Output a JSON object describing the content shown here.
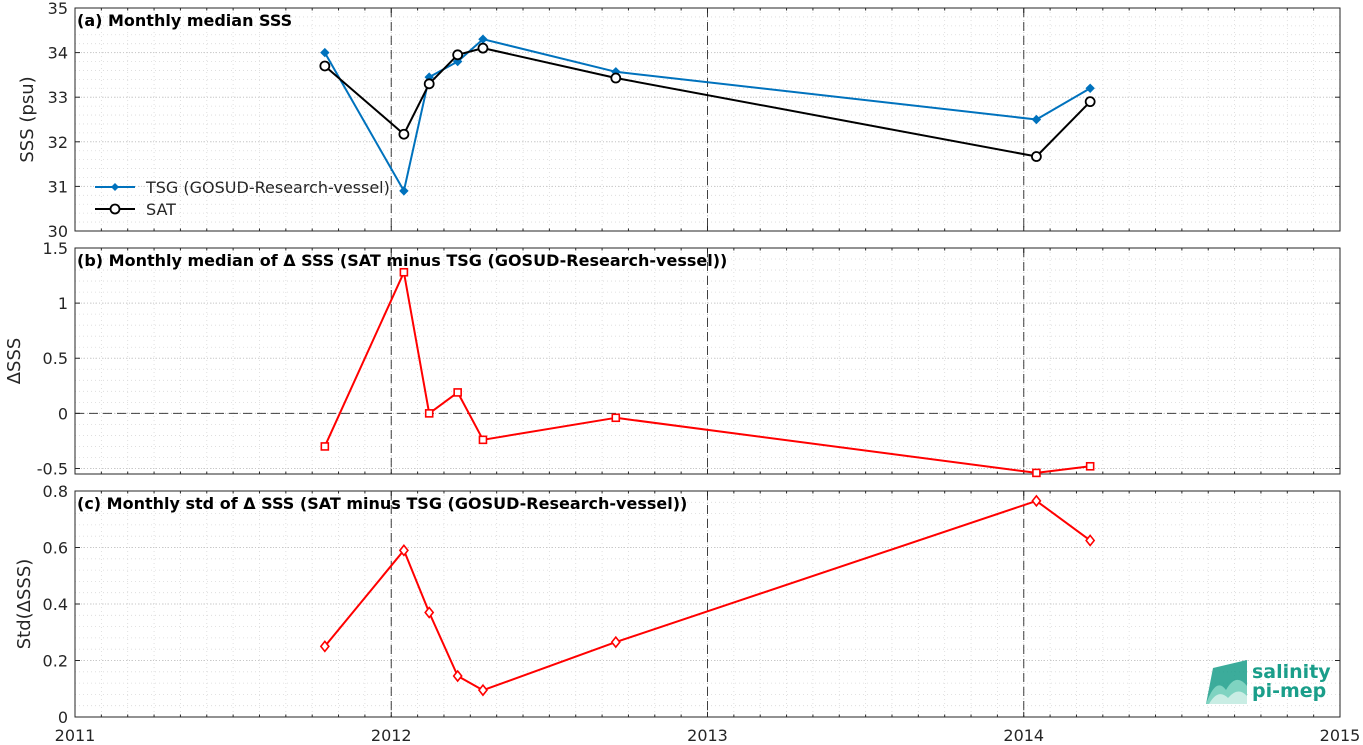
{
  "logo": {
    "line1": "salinity",
    "line2": "pi-mep"
  },
  "colors": {
    "tsg": "#0072bd",
    "sat": "#000000",
    "delta": "#ff0000",
    "logo": "#1a9e8a"
  },
  "chart_data": [
    {
      "type": "line",
      "title": "(a) Monthly median SSS",
      "ylabel": "SSS (psu)",
      "xlim": [
        2011,
        2015
      ],
      "ylim": [
        30,
        35
      ],
      "yticks": [
        30,
        31,
        32,
        33,
        34,
        35
      ],
      "ytick_labels": [
        "30",
        "31",
        "32",
        "33",
        "34",
        "35"
      ],
      "grid": true,
      "legend": "lower-left",
      "series": [
        {
          "name": "TSG (GOSUD-Research-vessel)",
          "color": "#0072bd",
          "marker": "filled-diamond",
          "x": [
            2011.79,
            2012.04,
            2012.12,
            2012.21,
            2012.29,
            2012.71,
            2014.04,
            2014.21
          ],
          "y": [
            34.0,
            30.9,
            33.45,
            33.8,
            34.3,
            33.57,
            32.5,
            33.2
          ]
        },
        {
          "name": "SAT",
          "color": "#000000",
          "marker": "open-circle",
          "x": [
            2011.79,
            2012.04,
            2012.12,
            2012.21,
            2012.29,
            2012.71,
            2014.04,
            2014.21
          ],
          "y": [
            33.7,
            32.17,
            33.3,
            33.95,
            34.1,
            33.43,
            31.67,
            32.9
          ]
        }
      ]
    },
    {
      "type": "line",
      "title": "(b) Monthly median of Δ SSS (SAT minus TSG (GOSUD-Research-vessel))",
      "ylabel": "ΔSSS",
      "xlim": [
        2011,
        2015
      ],
      "ylim": [
        -0.55,
        1.5
      ],
      "yticks": [
        -0.5,
        0,
        0.5,
        1,
        1.5
      ],
      "ytick_labels": [
        "-0.5",
        "0",
        "0.5",
        "1",
        "1.5"
      ],
      "grid": true,
      "zero_line": true,
      "series": [
        {
          "color": "#ff0000",
          "marker": "open-square",
          "x": [
            2011.79,
            2012.04,
            2012.12,
            2012.21,
            2012.29,
            2012.71,
            2014.04,
            2014.21
          ],
          "y": [
            -0.3,
            1.28,
            0.0,
            0.19,
            -0.24,
            -0.04,
            -0.54,
            -0.48
          ]
        }
      ]
    },
    {
      "type": "line",
      "title": "(c) Monthly std of Δ SSS (SAT minus TSG (GOSUD-Research-vessel))",
      "ylabel": "Std(ΔSSS)",
      "xlim": [
        2011,
        2015
      ],
      "ylim": [
        0,
        0.8
      ],
      "yticks": [
        0,
        0.2,
        0.4,
        0.6,
        0.8
      ],
      "ytick_labels": [
        "0",
        "0.2",
        "0.4",
        "0.6",
        "0.8"
      ],
      "xticks": [
        2011,
        2012,
        2013,
        2014,
        2015
      ],
      "xtick_labels": [
        "2011",
        "2012",
        "2013",
        "2014",
        "2015"
      ],
      "grid": true,
      "series": [
        {
          "color": "#ff0000",
          "marker": "open-diamond",
          "x": [
            2011.79,
            2012.04,
            2012.12,
            2012.21,
            2012.29,
            2012.71,
            2014.04,
            2014.21
          ],
          "y": [
            0.25,
            0.59,
            0.37,
            0.145,
            0.095,
            0.265,
            0.765,
            0.625
          ]
        }
      ]
    }
  ]
}
